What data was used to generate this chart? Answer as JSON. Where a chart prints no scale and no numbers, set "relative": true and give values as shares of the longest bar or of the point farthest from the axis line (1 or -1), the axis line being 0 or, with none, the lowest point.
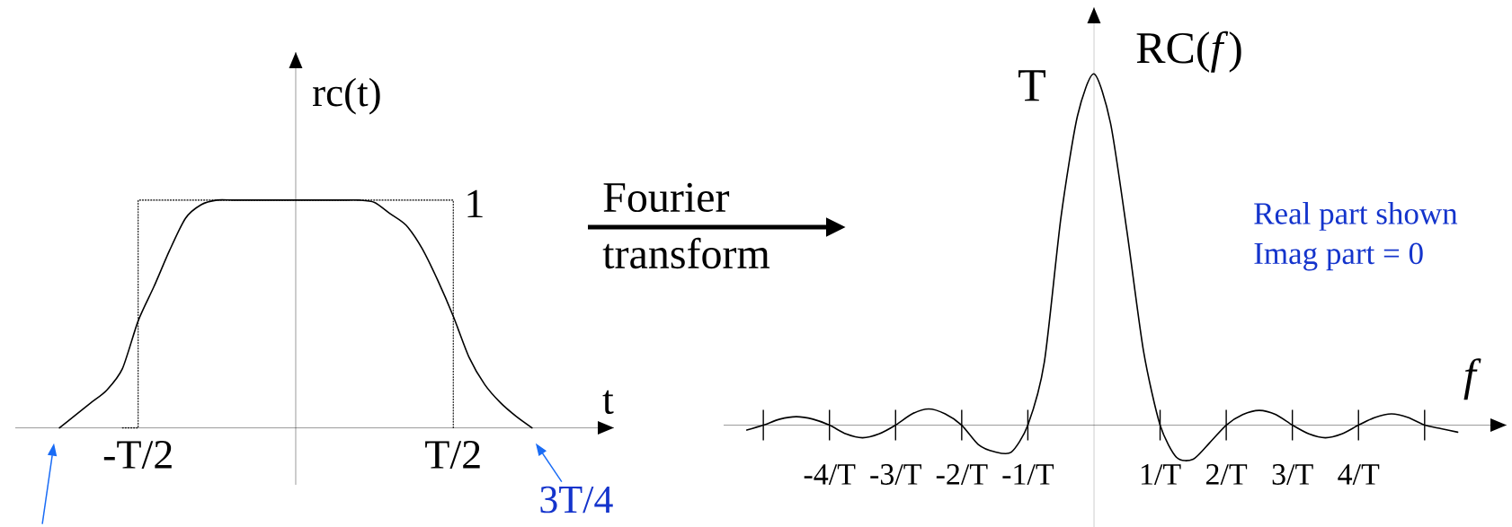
{
  "chart_data": [
    {
      "type": "line",
      "xlabel": "t",
      "ylabel": "rc(t)",
      "relative": true,
      "marker": "none",
      "categories": [
        null,
        null,
        null,
        null,
        null,
        "-T/2",
        null,
        null,
        null,
        null,
        null,
        null,
        null,
        null,
        null,
        null,
        null,
        null,
        null,
        null,
        null,
        null,
        null,
        null,
        null,
        "T/2",
        null,
        null,
        null,
        null,
        null
      ],
      "series": [
        {
          "color": "#000000",
          "line_style": "solid",
          "values": [
            0,
            0.055,
            0.11,
            0.165,
            0.26,
            0.47,
            0.62,
            0.78,
            0.92,
            0.98,
            1,
            1,
            1,
            1,
            1,
            1,
            1,
            1,
            1,
            1,
            0.99,
            0.94,
            0.89,
            0.79,
            0.65,
            0.49,
            0.31,
            0.19,
            0.11,
            0.05,
            0
          ]
        },
        {
          "type": "step",
          "color": "#000000",
          "line_style": "dotted",
          "values": [
            null,
            null,
            null,
            null,
            0,
            1,
            1,
            1,
            1,
            1,
            1,
            1,
            1,
            1,
            1,
            1,
            1,
            1,
            1,
            1,
            1,
            1,
            1,
            1,
            1,
            0,
            null,
            null,
            null,
            null,
            null
          ]
        }
      ],
      "annotations": [
        {
          "text": "1",
          "x": "T/2",
          "y": 1
        },
        "3T/4",
        "Fourier",
        "transform"
      ]
    },
    {
      "type": "line",
      "xlabel": "f",
      "ylabel": "RC(*f*)",
      "relative": true,
      "marker": "none",
      "categories": [
        null,
        null,
        null,
        null,
        null,
        null,
        "-4/T",
        null,
        null,
        null,
        "-3/T",
        null,
        null,
        null,
        "-2/T",
        null,
        null,
        null,
        "-1/T",
        null,
        null,
        null,
        null,
        null,
        null,
        null,
        "1/T",
        null,
        null,
        null,
        "2/T",
        null,
        null,
        null,
        "3/T",
        null,
        null,
        null,
        "4/T",
        null,
        null,
        null,
        null,
        null,
        null
      ],
      "series": [
        {
          "color": "#000000",
          "line_style": "solid",
          "values": [
            null,
            -0.014,
            0,
            0.017,
            0.024,
            0.017,
            0,
            -0.025,
            -0.036,
            -0.025,
            0,
            0.032,
            0.046,
            0.032,
            0,
            -0.055,
            -0.076,
            -0.077,
            0,
            0.18,
            0.59,
            0.88,
            1,
            0.86,
            0.55,
            0.21,
            0,
            -0.092,
            -0.097,
            -0.05,
            0,
            0.03,
            0.042,
            0.03,
            0,
            -0.025,
            -0.036,
            -0.025,
            0,
            0.022,
            0.032,
            0.022,
            0,
            -0.01,
            -0.02
          ]
        }
      ],
      "annotations": [
        "T",
        "Real part shown",
        "Imag part = 0"
      ]
    }
  ]
}
